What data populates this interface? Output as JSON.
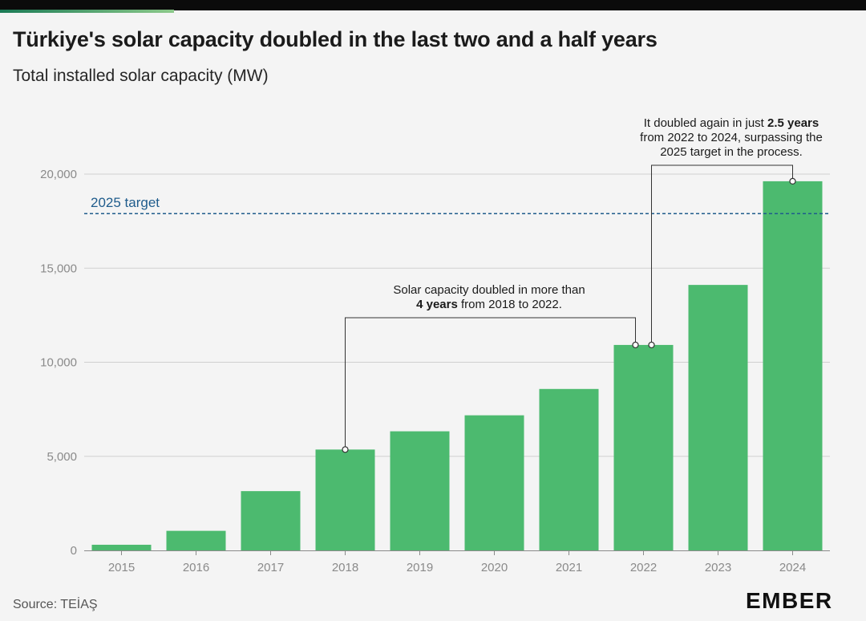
{
  "title": "Türkiye's solar capacity doubled in the last two and a half years",
  "subtitle": "Total installed solar capacity (MW)",
  "source": "Source: TEİAŞ",
  "brand": "EMBER",
  "colors": {
    "bar": "#4cba6f",
    "target": "#1f5c8c",
    "grid": "#d0d0d0",
    "axis": "#8a8a8a"
  },
  "chart_data": {
    "type": "bar",
    "categories": [
      "2015",
      "2016",
      "2017",
      "2018",
      "2019",
      "2020",
      "2021",
      "2022",
      "2023",
      "2024"
    ],
    "values": [
      300,
      1040,
      3150,
      5360,
      6330,
      7180,
      8580,
      10920,
      14110,
      19620
    ],
    "ylim": [
      0,
      20000
    ],
    "yticks": [
      0,
      5000,
      10000,
      15000,
      20000
    ],
    "ytick_labels": [
      "0",
      "5,000",
      "10,000",
      "15,000",
      "20,000"
    ],
    "grid": true,
    "xlabel": "",
    "ylabel": "",
    "reference_line": {
      "label": "2025 target",
      "value": 17900
    },
    "annotations": [
      {
        "pre": "Solar capacity doubled in more than",
        "bold": "4 years",
        "post": " from 2018 to 2022.",
        "from": "2018",
        "to": "2022"
      },
      {
        "pre": "It doubled again in just ",
        "bold": "2.5 years",
        "post": "from 2022 to 2024, surpassing the 2025 target in the process.",
        "from": "2022",
        "to": "2024"
      }
    ]
  }
}
